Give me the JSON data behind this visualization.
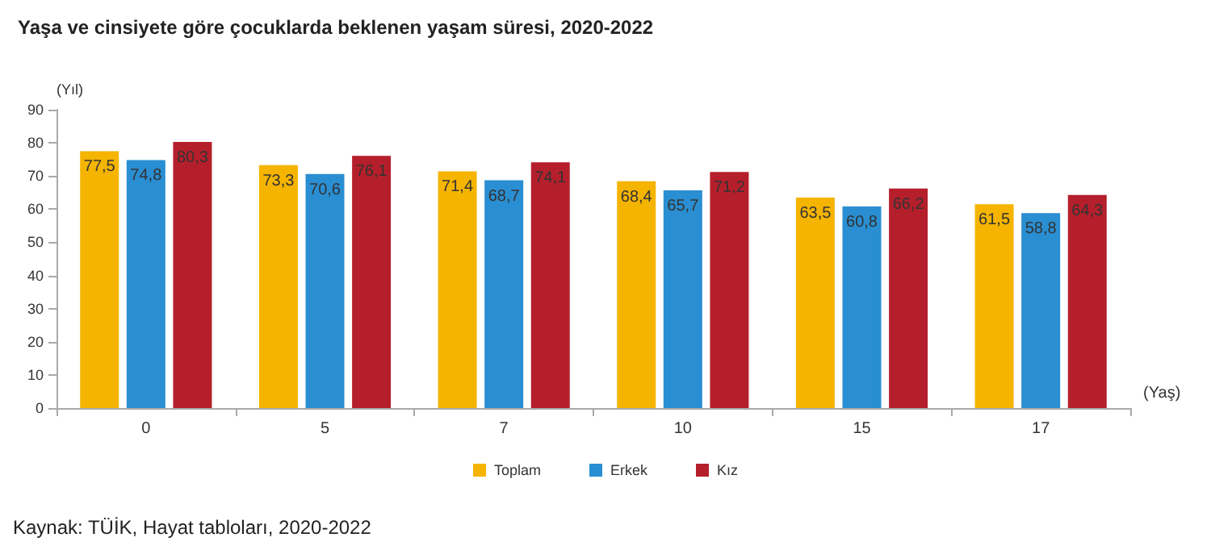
{
  "chart_data": {
    "type": "bar",
    "title": "Yaşa ve cinsiyete göre çocuklarda beklenen yaşam süresi, 2020-2022",
    "xlabel": "(Yaş)",
    "ylabel": "(Yıl)",
    "categories": [
      "0",
      "5",
      "7",
      "10",
      "15",
      "17"
    ],
    "series": [
      {
        "name": "Toplam",
        "color": "#f5b400",
        "values": [
          77.5,
          73.3,
          71.4,
          68.4,
          63.5,
          61.5
        ],
        "value_labels": [
          "77,5",
          "73,3",
          "71,4",
          "68,4",
          "63,5",
          "61,5"
        ]
      },
      {
        "name": "Erkek",
        "color": "#2a8ed2",
        "values": [
          74.8,
          70.6,
          68.7,
          65.7,
          60.8,
          58.8
        ],
        "value_labels": [
          "74,8",
          "70,6",
          "68,7",
          "65,7",
          "60,8",
          "58,8"
        ]
      },
      {
        "name": "Kız",
        "color": "#b51f2b",
        "values": [
          80.3,
          76.1,
          74.1,
          71.2,
          66.2,
          64.3
        ],
        "value_labels": [
          "80,3",
          "76,1",
          "74,1",
          "71,2",
          "66,2",
          "64,3"
        ]
      }
    ],
    "ylim": [
      0,
      90
    ],
    "yticks": [
      0,
      10,
      20,
      30,
      40,
      50,
      60,
      70,
      80,
      90
    ],
    "grid": false,
    "legend": "bottom",
    "annotations": [
      "Kaynak: TÜİK, Hayat tabloları, 2020-2022"
    ]
  }
}
